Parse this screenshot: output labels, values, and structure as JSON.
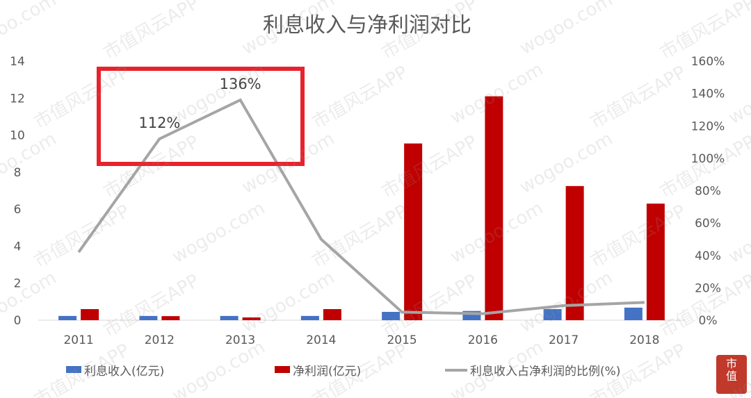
{
  "chart_data": {
    "type": "bar+line",
    "title": "利息收入与净利润对比",
    "categories": [
      "2011",
      "2012",
      "2013",
      "2014",
      "2015",
      "2016",
      "2017",
      "2018"
    ],
    "series": [
      {
        "name": "利息收入(亿元)",
        "type": "bar",
        "axis": "left",
        "color": "#4472C4",
        "values": [
          0.23,
          0.23,
          0.23,
          0.23,
          0.45,
          0.5,
          0.6,
          0.68
        ]
      },
      {
        "name": "净利润(亿元)",
        "type": "bar",
        "axis": "left",
        "color": "#C00000",
        "values": [
          0.6,
          0.22,
          0.15,
          0.6,
          9.55,
          12.1,
          7.25,
          6.3
        ]
      },
      {
        "name": "利息收入占净利润的比例(%)",
        "type": "line",
        "axis": "right",
        "color": "#A5A5A5",
        "values": [
          42,
          112,
          136,
          50,
          5,
          4,
          9,
          11
        ]
      }
    ],
    "left_axis": {
      "ylim": [
        0,
        14
      ],
      "ticks": [
        "0",
        "2",
        "4",
        "6",
        "8",
        "10",
        "12",
        "14"
      ]
    },
    "right_axis": {
      "ylim": [
        0,
        160
      ],
      "ticks": [
        "0%",
        "20%",
        "40%",
        "60%",
        "80%",
        "100%",
        "120%",
        "140%",
        "160%"
      ]
    },
    "data_labels": [
      {
        "category": "2012",
        "text": "112%"
      },
      {
        "category": "2013",
        "text": "136%"
      }
    ],
    "highlight_box_color": "#E8222C",
    "legend_placement": "bottom",
    "grid": false
  },
  "watermark": {
    "texts": [
      "wogoo.com",
      "市值风云APP"
    ],
    "logo": "市值风云"
  }
}
